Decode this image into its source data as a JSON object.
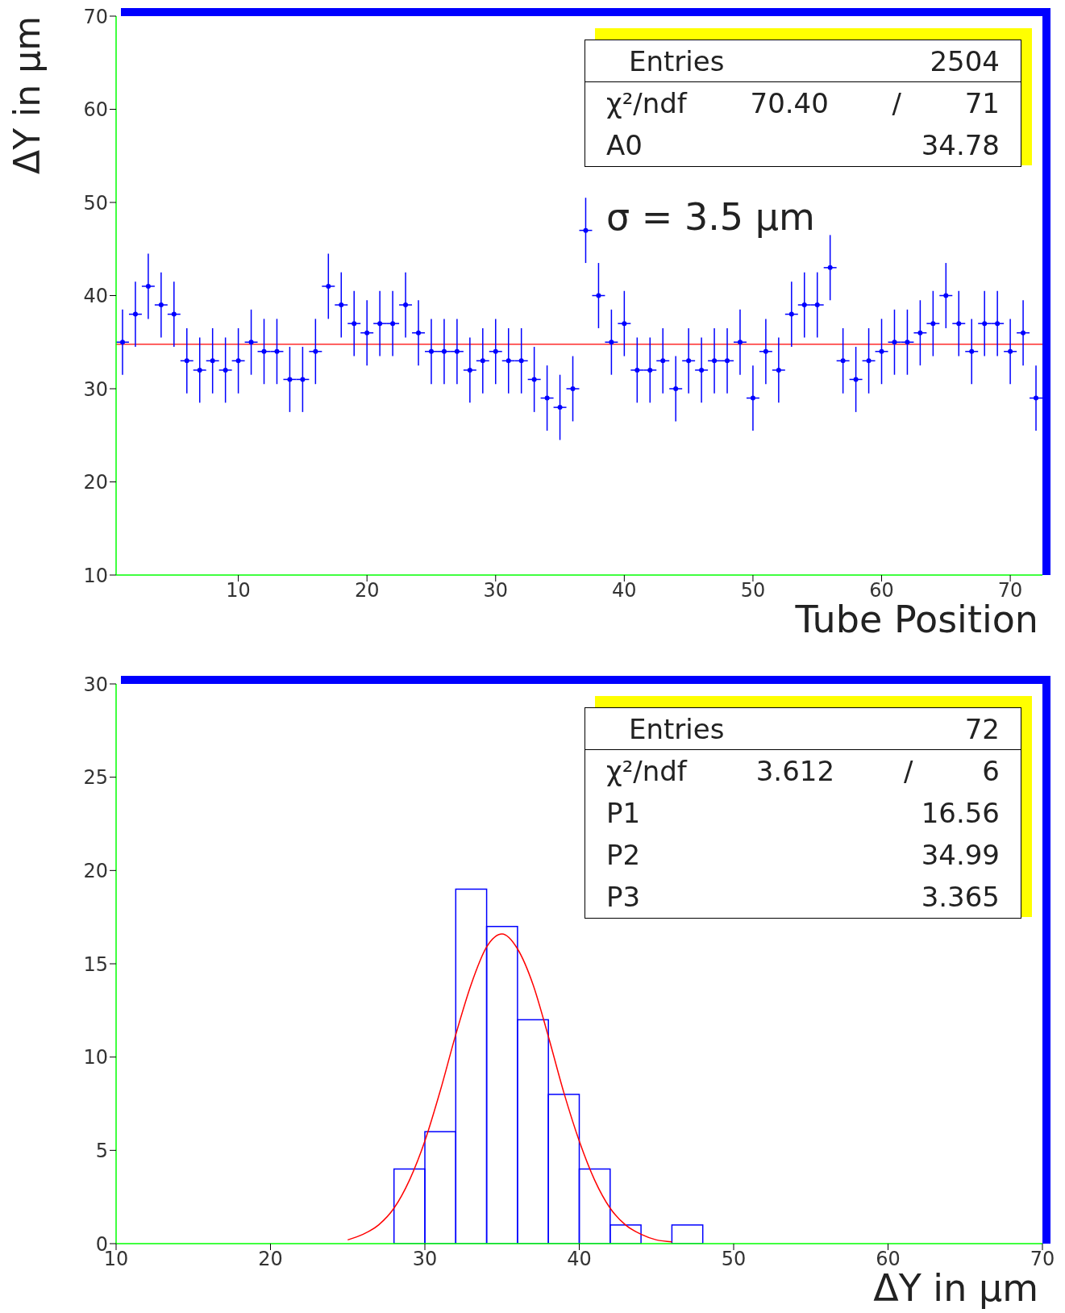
{
  "chart_data": [
    {
      "type": "scatter",
      "xlabel": "Tube Position",
      "ylabel": "ΔY in μm",
      "color": "#0000ff",
      "x": [
        1,
        2,
        3,
        4,
        5,
        6,
        7,
        8,
        9,
        10,
        11,
        12,
        13,
        14,
        15,
        16,
        17,
        18,
        19,
        20,
        21,
        22,
        23,
        24,
        25,
        26,
        27,
        28,
        29,
        30,
        31,
        32,
        33,
        34,
        35,
        36,
        37,
        38,
        39,
        40,
        41,
        42,
        43,
        44,
        45,
        46,
        47,
        48,
        49,
        50,
        51,
        52,
        53,
        54,
        55,
        56,
        57,
        58,
        59,
        60,
        61,
        62,
        63,
        64,
        65,
        66,
        67,
        68,
        69,
        70,
        71,
        72
      ],
      "values": [
        35,
        38,
        41,
        39,
        38,
        33,
        32,
        33,
        32,
        33,
        35,
        34,
        34,
        31,
        31,
        34,
        41,
        39,
        37,
        36,
        37,
        37,
        39,
        36,
        34,
        34,
        34,
        32,
        33,
        34,
        33,
        33,
        31,
        29,
        28,
        30,
        47,
        40,
        35,
        37,
        32,
        32,
        33,
        30,
        33,
        32,
        33,
        33,
        35,
        29,
        34,
        32,
        38,
        39,
        39,
        43,
        33,
        31,
        33,
        34,
        35,
        35,
        36,
        37,
        40,
        37,
        34,
        37,
        37,
        34,
        36,
        29
      ],
      "errors": [
        3.5,
        3.5,
        3.5,
        3.5,
        3.5,
        3.5,
        3.5,
        3.5,
        3.5,
        3.5,
        3.5,
        3.5,
        3.5,
        3.5,
        3.5,
        3.5,
        3.5,
        3.5,
        3.5,
        3.5,
        3.5,
        3.5,
        3.5,
        3.5,
        3.5,
        3.5,
        3.5,
        3.5,
        3.5,
        3.5,
        3.5,
        3.5,
        3.5,
        3.5,
        3.5,
        3.5,
        3.5,
        3.5,
        3.5,
        3.5,
        3.5,
        3.5,
        3.5,
        3.5,
        3.5,
        3.5,
        3.5,
        3.5,
        3.5,
        3.5,
        3.5,
        3.5,
        3.5,
        3.5,
        3.5,
        3.5,
        3.5,
        3.5,
        3.5,
        3.5,
        3.5,
        3.5,
        3.5,
        3.5,
        3.5,
        3.5,
        3.5,
        3.5,
        3.5,
        3.5,
        3.5,
        3.5
      ],
      "xerrors": [
        0.5,
        0.5,
        0.5,
        0.5,
        0.5,
        0.5,
        0.5,
        0.5,
        0.5,
        0.5,
        0.5,
        0.5,
        0.5,
        0.5,
        0.5,
        0.5,
        0.5,
        0.5,
        0.5,
        0.5,
        0.5,
        0.5,
        0.5,
        0.5,
        0.5,
        0.5,
        0.5,
        0.5,
        0.5,
        0.5,
        0.5,
        0.5,
        0.5,
        0.5,
        0.5,
        0.5,
        0.5,
        0.5,
        0.5,
        0.5,
        0.5,
        0.5,
        0.5,
        0.5,
        0.5,
        0.5,
        0.5,
        0.5,
        0.5,
        0.5,
        0.5,
        0.5,
        0.5,
        0.5,
        0.5,
        0.5,
        0.5,
        0.5,
        0.5,
        0.5,
        0.5,
        0.5,
        0.5,
        0.5,
        0.5,
        0.5,
        0.5,
        0.5,
        0.5,
        0.5,
        0.5,
        0.5
      ],
      "ref_lines": [
        {
          "axis": "y",
          "value": 34.78,
          "color": "#ff0000"
        }
      ],
      "xlim": [
        0.5,
        72.5
      ],
      "xticks": [
        10,
        20,
        30,
        40,
        50,
        60,
        70
      ],
      "ylim": [
        10,
        70
      ],
      "yticks": [
        10,
        20,
        30,
        40,
        50,
        60,
        70
      ],
      "annotations": [
        "Entries 2504",
        "χ²/ndf 70.40 / 71",
        "A0 34.78",
        "σ = 3.5 μm"
      ]
    },
    {
      "type": "histogram",
      "xlabel": "ΔY in μm",
      "color": "#0000ff",
      "bins": [
        28,
        30,
        32,
        34,
        36,
        38,
        40,
        42,
        44,
        46,
        48
      ],
      "values": [
        4,
        6,
        19,
        17,
        12,
        8,
        4,
        1,
        0,
        1
      ],
      "series": [
        {
          "type": "line",
          "color": "#ff0000",
          "x": [
            25,
            26,
            27,
            28,
            29,
            30,
            31,
            32,
            33,
            34,
            35,
            36,
            37,
            38,
            39,
            40,
            41,
            42,
            43,
            44,
            45,
            46
          ],
          "values": [
            0.2,
            0.5,
            1.0,
            1.9,
            3.4,
            5.5,
            8.2,
            11.2,
            13.9,
            15.9,
            16.6,
            15.8,
            13.9,
            11.1,
            8.1,
            5.5,
            3.4,
            1.9,
            1.0,
            0.5,
            0.2,
            0.1
          ]
        }
      ],
      "xlim": [
        10,
        70
      ],
      "xticks": [
        10,
        20,
        30,
        40,
        50,
        60,
        70
      ],
      "ylim": [
        0,
        30
      ],
      "yticks": [
        0,
        5,
        10,
        15,
        20,
        25,
        30
      ],
      "annotations": [
        "Entries 72",
        "χ²/ndf 3.612 / 6",
        "P1 16.56",
        "P2 34.99",
        "P3 3.365"
      ]
    }
  ]
}
